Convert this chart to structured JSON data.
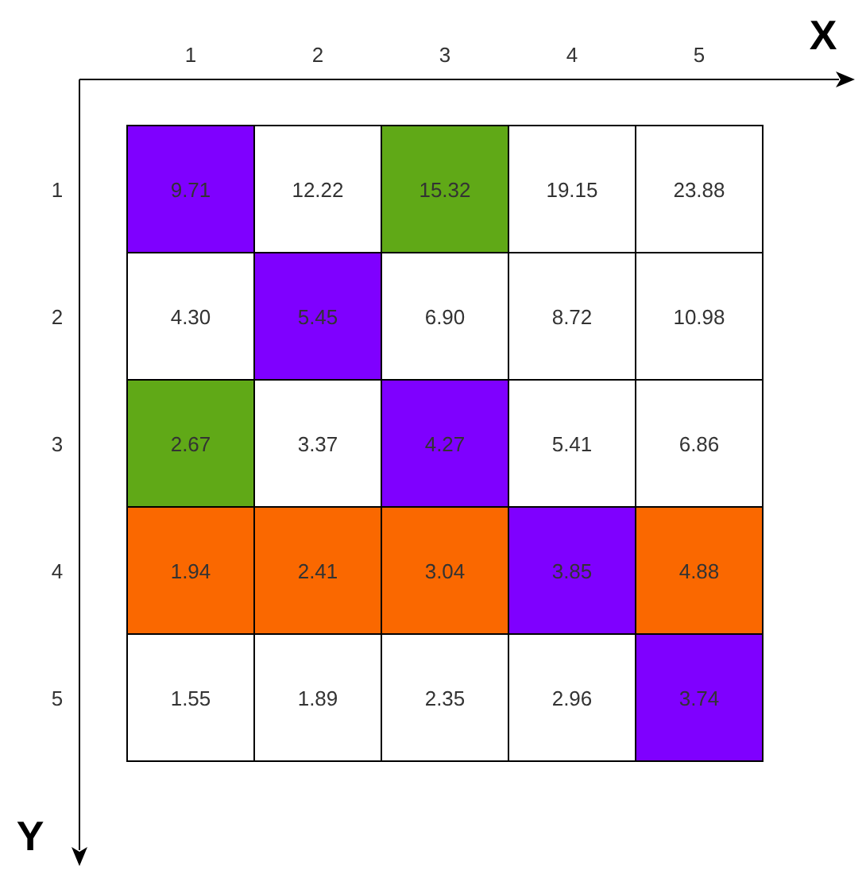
{
  "chart_data": {
    "type": "heatmap",
    "data_labels": true,
    "xlabel": "X",
    "ylabel": "Y",
    "categories": [
      "1",
      "2",
      "3",
      "4",
      "5"
    ],
    "y_categories": [
      "1",
      "2",
      "3",
      "4",
      "5"
    ],
    "cells": [
      [
        9.71,
        12.22,
        15.32,
        19.15,
        23.88
      ],
      [
        4.3,
        5.45,
        6.9,
        8.72,
        10.98
      ],
      [
        2.67,
        3.37,
        4.27,
        5.41,
        6.86
      ],
      [
        1.94,
        2.41,
        3.04,
        3.85,
        4.88
      ],
      [
        1.55,
        1.89,
        2.35,
        2.96,
        3.74
      ]
    ],
    "cell_labels": [
      [
        "9.71",
        "12.22",
        "15.32",
        "19.15",
        "23.88"
      ],
      [
        "4.30",
        "5.45",
        "6.90",
        "8.72",
        "10.98"
      ],
      [
        "2.67",
        "3.37",
        "4.27",
        "5.41",
        "6.86"
      ],
      [
        "1.94",
        "2.41",
        "3.04",
        "3.85",
        "4.88"
      ],
      [
        "1.55",
        "1.89",
        "2.35",
        "2.96",
        "3.74"
      ]
    ],
    "colors": [
      [
        "#7f00ff",
        "#ffffff",
        "#60a917",
        "#ffffff",
        "#ffffff"
      ],
      [
        "#ffffff",
        "#7f00ff",
        "#ffffff",
        "#ffffff",
        "#ffffff"
      ],
      [
        "#60a917",
        "#ffffff",
        "#7f00ff",
        "#ffffff",
        "#ffffff"
      ],
      [
        "#fa6800",
        "#fa6800",
        "#fa6800",
        "#7f00ff",
        "#fa6800"
      ],
      [
        "#ffffff",
        "#ffffff",
        "#ffffff",
        "#ffffff",
        "#7f00ff"
      ]
    ]
  }
}
